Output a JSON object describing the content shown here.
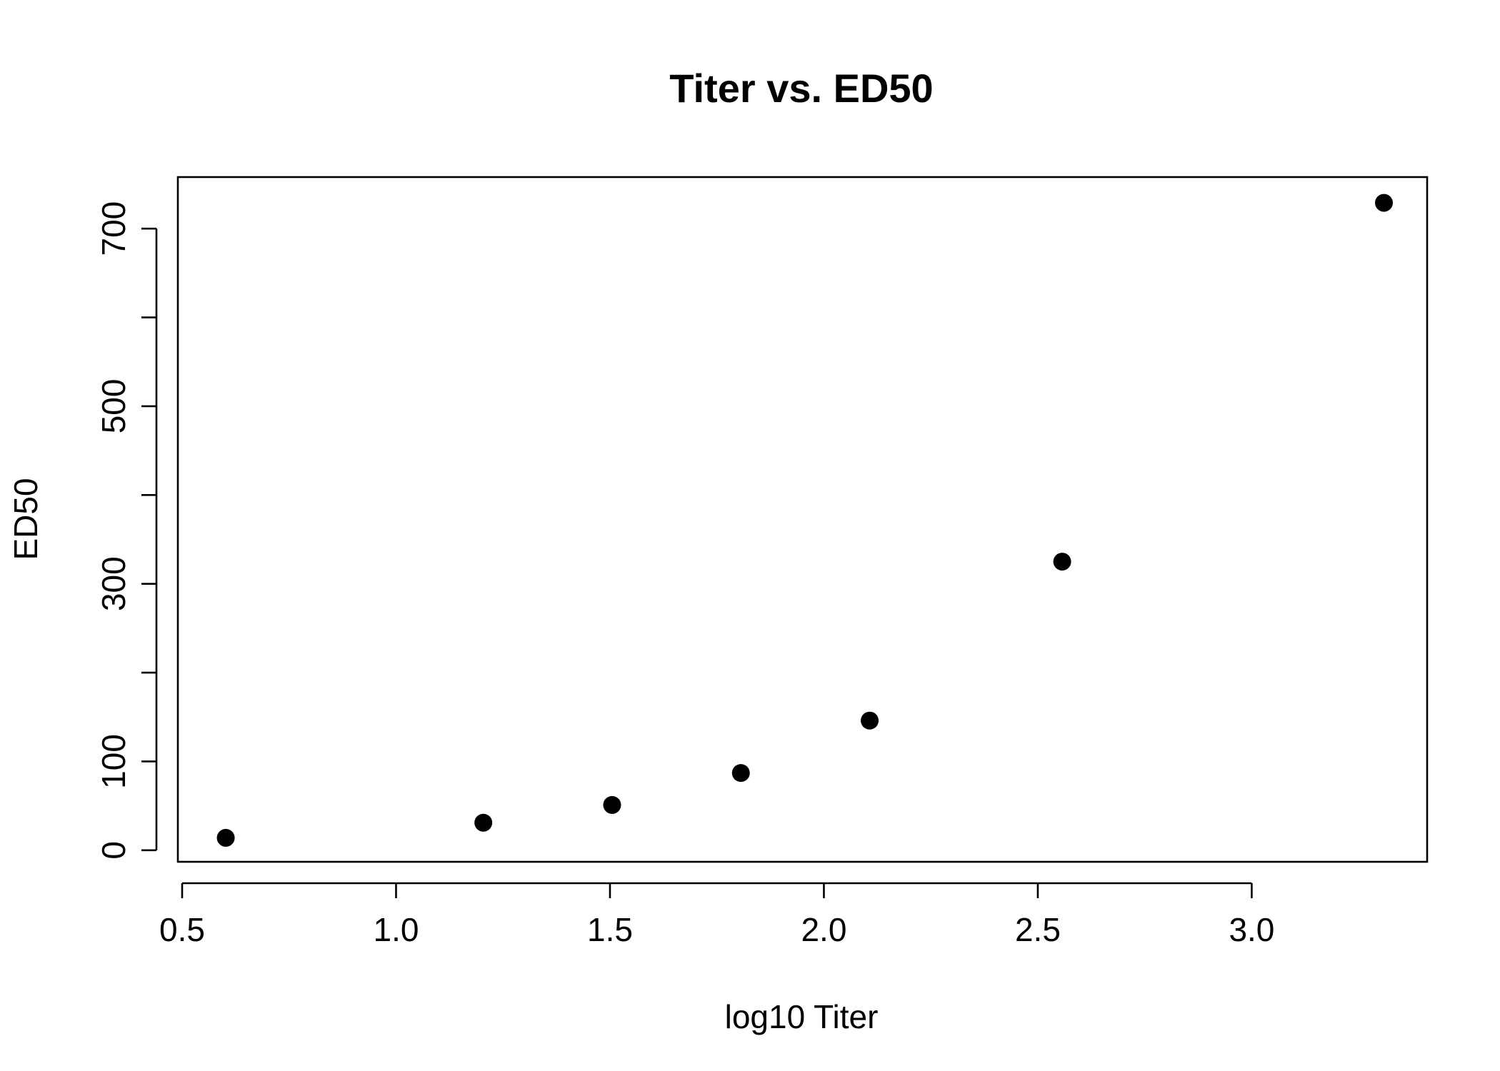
{
  "chart_data": {
    "type": "scatter",
    "title": "Titer vs. ED50",
    "xlabel": "log10 Titer",
    "ylabel": "ED50",
    "x_ticks": [
      0.5,
      1.0,
      1.5,
      2.0,
      2.5,
      3.0
    ],
    "x_tick_labels": [
      "0.5",
      "1.0",
      "1.5",
      "2.0",
      "2.5",
      "3.0"
    ],
    "y_ticks": [
      0,
      100,
      200,
      300,
      400,
      500,
      600,
      700
    ],
    "y_tick_labels": [
      "0",
      "100",
      "",
      "300",
      "",
      "500",
      "",
      "700"
    ],
    "xlim": [
      0.49,
      3.41
    ],
    "ylim": [
      -13,
      758
    ],
    "grid": false,
    "point_color": "#000000",
    "series": [
      {
        "x": [
          0.602,
          1.204,
          1.505,
          1.806,
          2.107,
          2.557,
          3.309
        ],
        "y": [
          14,
          31,
          51,
          87,
          146,
          325,
          729
        ]
      }
    ]
  }
}
